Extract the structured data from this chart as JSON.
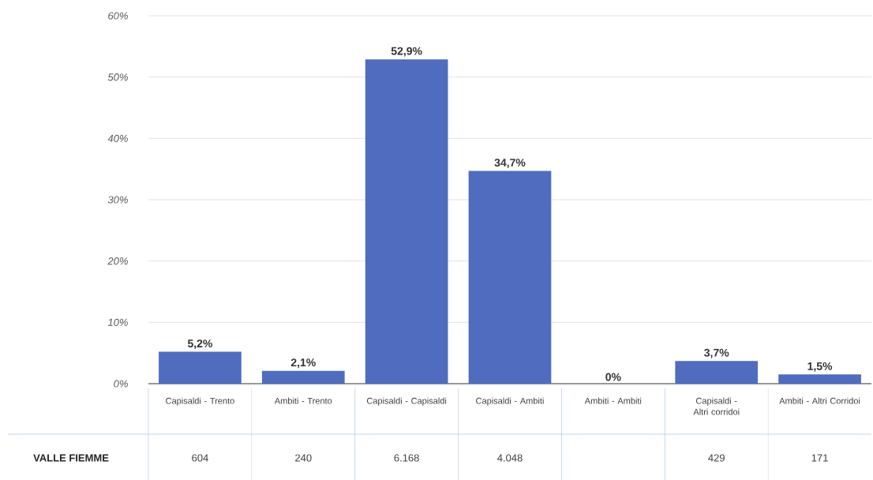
{
  "chart_data": {
    "type": "bar",
    "categories": [
      "Capisaldi - Trento",
      "Ambiti - Trento",
      "Capisaldi - Capisaldi",
      "Capisaldi - Ambiti",
      "Ambiti - Ambiti",
      "Capisaldi - Altri corridoi",
      "Ambiti - Altri Corridoi"
    ],
    "values": [
      5.2,
      2.1,
      52.9,
      34.7,
      0,
      3.7,
      1.5
    ],
    "value_labels": [
      "5,2%",
      "2,1%",
      "52,9%",
      "34,7%",
      "0%",
      "3,7%",
      "1,5%"
    ],
    "color": "#4f6cbf",
    "ylim": [
      0,
      60
    ],
    "yticks": [
      {
        "value": 0,
        "label": "0%"
      },
      {
        "value": 10,
        "label": "10%"
      },
      {
        "value": 20,
        "label": "20%"
      },
      {
        "value": 30,
        "label": "30%"
      },
      {
        "value": 40,
        "label": "40%"
      },
      {
        "value": 50,
        "label": "50%"
      },
      {
        "value": 60,
        "label": "60%"
      }
    ],
    "grid": "y",
    "annotations": [
      "VALLE FIEMME",
      "604",
      "240",
      "6.168",
      "4.048",
      "429",
      "171"
    ]
  }
}
